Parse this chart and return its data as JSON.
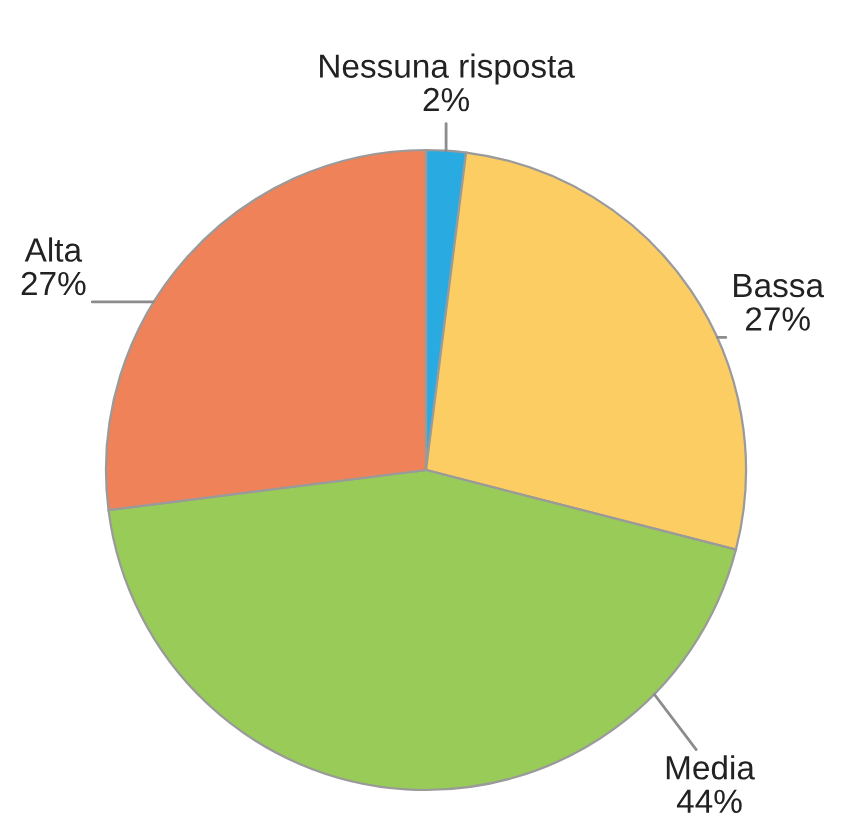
{
  "chart_data": {
    "type": "pie",
    "categories": [
      "Nessuna risposta",
      "Bassa",
      "Media",
      "Alta"
    ],
    "values": [
      2,
      27,
      44,
      27
    ],
    "value_labels": [
      "2%",
      "27%",
      "44%",
      "27%"
    ],
    "colors": [
      "#29abe2",
      "#fbcd63",
      "#98cb58",
      "#ef8259"
    ]
  }
}
